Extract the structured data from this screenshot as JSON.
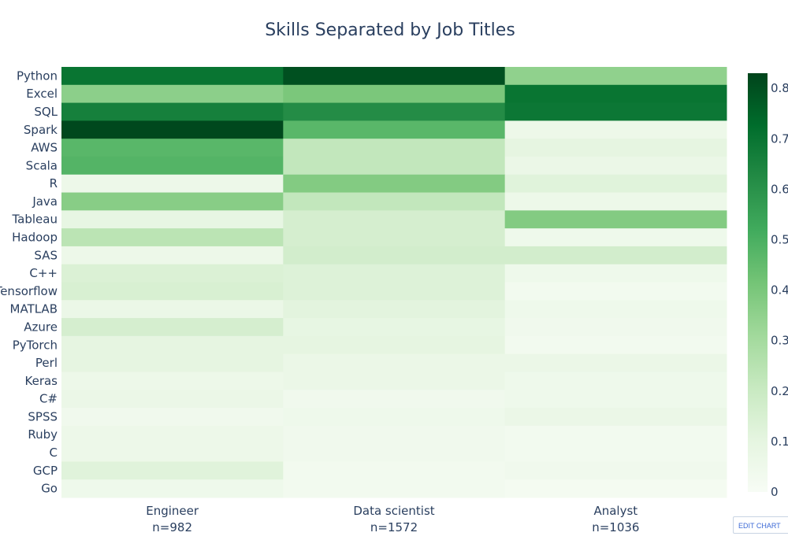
{
  "chart_data": {
    "type": "heatmap",
    "title": "Skills Separated by Job Titles",
    "x_labels": [
      {
        "line1": "Engineer",
        "line2": "n=982"
      },
      {
        "line1": "Data scientist",
        "line2": "n=1572"
      },
      {
        "line1": "Analyst",
        "line2": "n=1036"
      }
    ],
    "y_labels": [
      "Python",
      "Excel",
      "SQL",
      "Spark",
      "AWS",
      "Scala",
      "R",
      "Java",
      "Tableau",
      "Hadoop",
      "SAS",
      "C++",
      "Tensorflow",
      "MATLAB",
      "Azure",
      "PyTorch",
      "Perl",
      "Keras",
      "C#",
      "SPSS",
      "Ruby",
      "C",
      "GCP",
      "Go"
    ],
    "z": [
      [
        0.7,
        0.8,
        0.35
      ],
      [
        0.36,
        0.4,
        0.7
      ],
      [
        0.66,
        0.62,
        0.69
      ],
      [
        0.82,
        0.47,
        0.06
      ],
      [
        0.47,
        0.22,
        0.1
      ],
      [
        0.48,
        0.22,
        0.07
      ],
      [
        0.06,
        0.38,
        0.12
      ],
      [
        0.37,
        0.22,
        0.06
      ],
      [
        0.09,
        0.16,
        0.38
      ],
      [
        0.24,
        0.16,
        0.05
      ],
      [
        0.06,
        0.17,
        0.17
      ],
      [
        0.14,
        0.13,
        0.05
      ],
      [
        0.15,
        0.13,
        0.03
      ],
      [
        0.07,
        0.11,
        0.05
      ],
      [
        0.16,
        0.09,
        0.04
      ],
      [
        0.1,
        0.1,
        0.03
      ],
      [
        0.1,
        0.07,
        0.07
      ],
      [
        0.06,
        0.07,
        0.05
      ],
      [
        0.07,
        0.04,
        0.05
      ],
      [
        0.04,
        0.05,
        0.07
      ],
      [
        0.06,
        0.04,
        0.03
      ],
      [
        0.06,
        0.04,
        0.03
      ],
      [
        0.12,
        0.03,
        0.04
      ],
      [
        0.05,
        0.03,
        0.02
      ]
    ],
    "zmin": 0,
    "zmax": 0.83,
    "colorscale_name": "Greens",
    "colorscale": [
      "#f7fcf5",
      "#e5f5e0",
      "#c7e9c0",
      "#a1d99b",
      "#74c476",
      "#41ab5d",
      "#238b45",
      "#006d2c",
      "#00441b"
    ],
    "colorbar_ticks": [
      "0",
      "0.1",
      "0.2",
      "0.3",
      "0.4",
      "0.5",
      "0.6",
      "0.7",
      "0.8"
    ]
  },
  "toolbar": {
    "edit_chart_label": "EDIT CHART"
  }
}
